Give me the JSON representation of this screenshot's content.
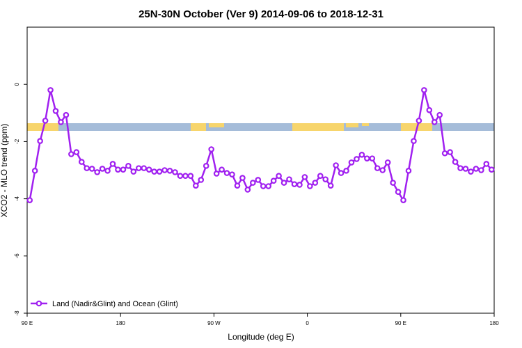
{
  "chart_data": {
    "type": "line",
    "title": "25N-30N October (Ver 9)   2014-09-06 to 2018-12-31",
    "xlabel": "Longitude (deg E)",
    "ylabel": "XCO2 - MLO trend (ppm)",
    "x": [
      92.5,
      97.5,
      102.5,
      107.5,
      112.5,
      117.5,
      122.5,
      127.5,
      132.5,
      137.5,
      142.5,
      147.5,
      152.5,
      157.5,
      162.5,
      167.5,
      172.5,
      177.5,
      182.5,
      187.5,
      192.5,
      197.5,
      202.5,
      207.5,
      212.5,
      217.5,
      222.5,
      227.5,
      232.5,
      237.5,
      242.5,
      247.5,
      252.5,
      257.5,
      262.5,
      267.5,
      272.5,
      277.5,
      282.5,
      287.5,
      292.5,
      297.5,
      302.5,
      307.5,
      312.5,
      317.5,
      322.5,
      327.5,
      332.5,
      337.5,
      342.5,
      347.5,
      352.5,
      357.5,
      362.5,
      367.5,
      372.5,
      377.5,
      382.5,
      387.5,
      392.5,
      397.5,
      402.5,
      407.5,
      412.5,
      417.5,
      422.5,
      427.5,
      432.5,
      437.5,
      442.5,
      447.5,
      452.5,
      457.5,
      462.5,
      467.5,
      472.5,
      477.5,
      482.5,
      487.5,
      492.5,
      497.5,
      502.5,
      507.5,
      512.5,
      517.5,
      522.5,
      527.5,
      532.5,
      537.5
    ],
    "series": [
      {
        "name": "Land (Nadir&Glint) and Ocean (Glint)",
        "color": "#a020f0",
        "values": [
          -4.05,
          -3.02,
          -1.98,
          -1.27,
          -0.2,
          -0.93,
          -1.32,
          -1.07,
          -2.44,
          -2.37,
          -2.71,
          -2.93,
          -2.95,
          -3.07,
          -2.95,
          -3.02,
          -2.78,
          -2.98,
          -2.98,
          -2.85,
          -3.05,
          -2.93,
          -2.93,
          -2.98,
          -3.05,
          -3.05,
          -3.0,
          -3.02,
          -3.07,
          -3.2,
          -3.2,
          -3.2,
          -3.54,
          -3.34,
          -2.85,
          -2.27,
          -3.12,
          -2.98,
          -3.1,
          -3.15,
          -3.54,
          -3.27,
          -3.68,
          -3.44,
          -3.34,
          -3.56,
          -3.56,
          -3.37,
          -3.2,
          -3.44,
          -3.32,
          -3.49,
          -3.51,
          -3.24,
          -3.56,
          -3.44,
          -3.2,
          -3.32,
          -3.54,
          -2.83,
          -3.1,
          -3.02,
          -2.73,
          -2.61,
          -2.46,
          -2.59,
          -2.59,
          -2.93,
          -3.0,
          -2.73,
          -3.44,
          -3.76,
          -4.05,
          -3.02,
          -1.98,
          -1.27,
          -0.2,
          -0.9,
          -1.32,
          -1.07,
          -2.41,
          -2.37,
          -2.71,
          -2.93,
          -2.95,
          -3.05,
          -2.95,
          -3.0,
          -2.78,
          -2.98
        ]
      }
    ],
    "xlim": [
      90,
      540
    ],
    "xticks": [
      {
        "value": 90,
        "label": "90 E"
      },
      180,
      {
        "value": 270,
        "label": "90 W"
      },
      {
        "value": 360,
        "label": "0"
      },
      {
        "value": 450,
        "label": "90 E"
      },
      {
        "value": 540,
        "label": "180"
      }
    ],
    "ylim": [
      -8,
      2
    ],
    "yticks": [
      -8,
      -6,
      -4,
      -2,
      0
    ],
    "legend": "bottom-left"
  }
}
